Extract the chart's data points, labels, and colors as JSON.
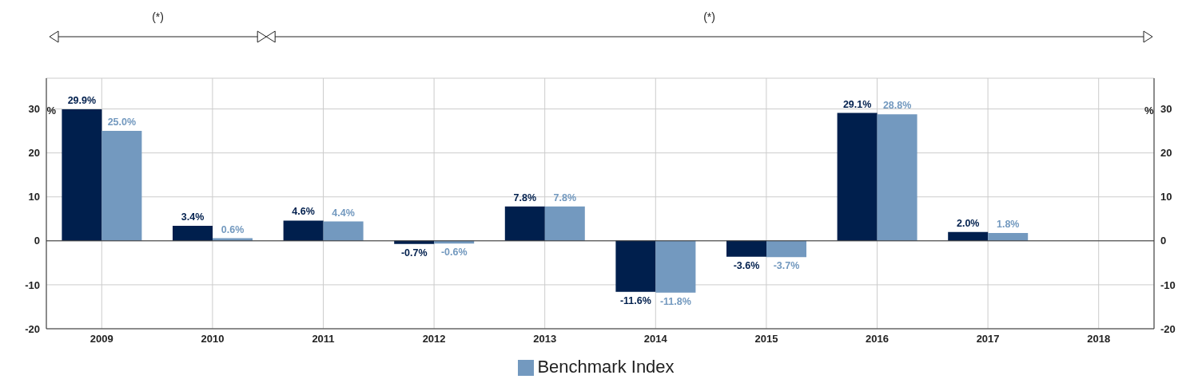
{
  "chart_data": {
    "type": "bar",
    "categories": [
      "2009",
      "2010",
      "2011",
      "2012",
      "2013",
      "2014",
      "2015",
      "2016",
      "2017",
      "2018"
    ],
    "series": [
      {
        "color": "#001f4d",
        "values": [
          29.9,
          3.4,
          4.6,
          -0.7,
          7.8,
          -11.6,
          -3.6,
          29.1,
          2.0,
          null
        ],
        "value_labels": [
          "29.9%",
          "3.4%",
          "4.6%",
          "-0.7%",
          "7.8%",
          "-11.6%",
          "-3.6%",
          "29.1%",
          "2.0%",
          null
        ]
      },
      {
        "name": "Benchmark Index",
        "color": "#7399bf",
        "values": [
          25.0,
          0.6,
          4.4,
          -0.6,
          7.8,
          -11.8,
          -3.7,
          28.8,
          1.8,
          null
        ],
        "value_labels": [
          "25.0%",
          "0.6%",
          "4.4%",
          "-0.6%",
          "7.8%",
          "-11.8%",
          "-3.7%",
          "28.8%",
          "1.8%",
          null
        ]
      }
    ],
    "ylabel": "%",
    "y2label": "%",
    "ylim": [
      -20,
      37
    ],
    "yticks": [
      -20,
      -10,
      0,
      10,
      20,
      30
    ],
    "y2lim": [
      -20,
      37
    ],
    "y2ticks": [
      -20,
      -10,
      0,
      10,
      20,
      30
    ],
    "ref_lines": [
      {
        "axis": "y",
        "value": 0,
        "color": "#333333"
      }
    ],
    "annotations": [
      "(*)",
      "(*)"
    ],
    "grid": true,
    "legend": "bottom"
  }
}
